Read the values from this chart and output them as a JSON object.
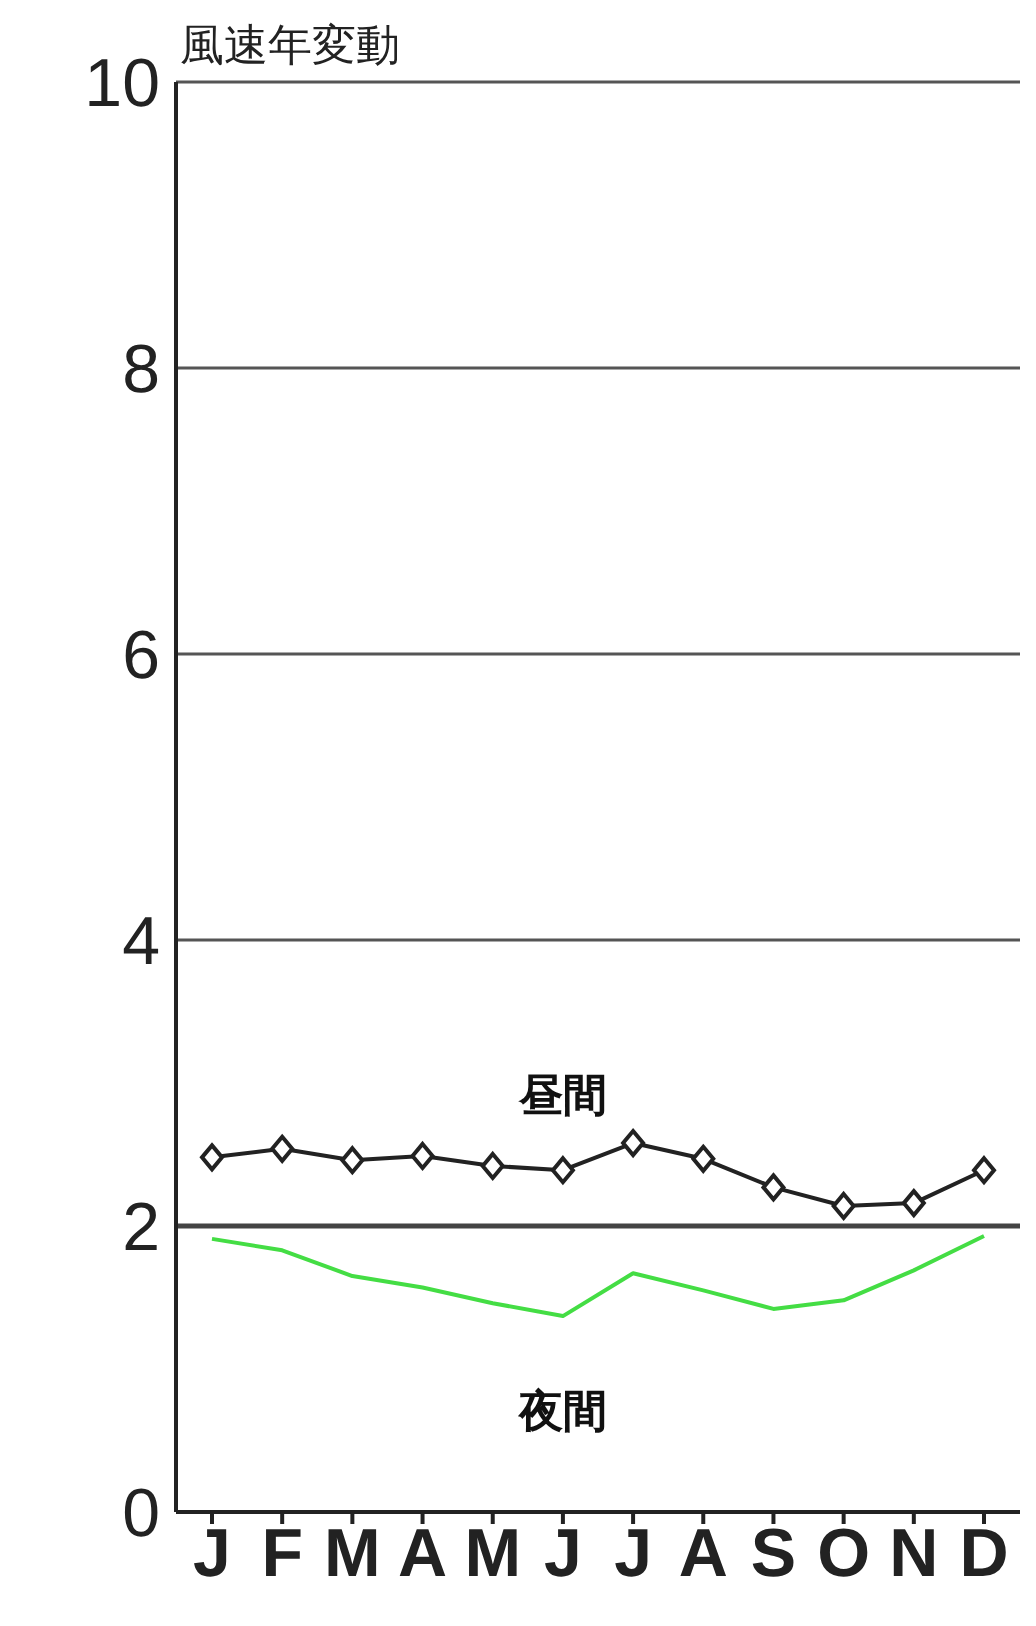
{
  "chart_data": {
    "type": "line",
    "title": "風速年変動",
    "categories": [
      "J",
      "F",
      "M",
      "A",
      "M",
      "J",
      "J",
      "A",
      "S",
      "O",
      "N",
      "D"
    ],
    "series": [
      {
        "name": "昼間",
        "color": "#222222",
        "marker": "diamond",
        "values": [
          2.48,
          2.54,
          2.46,
          2.49,
          2.42,
          2.39,
          2.58,
          2.47,
          2.27,
          2.14,
          2.16,
          2.39
        ]
      },
      {
        "name": "夜間",
        "color": "#44dd44",
        "marker": "none",
        "values": [
          1.91,
          1.83,
          1.65,
          1.57,
          1.46,
          1.37,
          1.67,
          1.55,
          1.42,
          1.48,
          1.69,
          1.93
        ]
      }
    ],
    "ylim": [
      0,
      10
    ],
    "yticks": [
      0,
      2,
      4,
      6,
      8,
      10
    ],
    "grid": "y",
    "ref_lines": [
      {
        "axis": "y",
        "value": 2,
        "color": "#444444"
      }
    ]
  }
}
